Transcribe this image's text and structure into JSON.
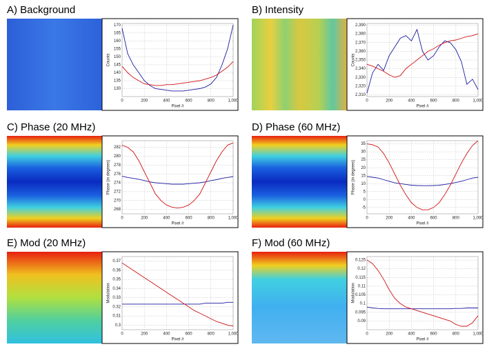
{
  "chart_data": [
    {
      "type": "line",
      "title": "A) Background",
      "xlabel": "Pixel #",
      "ylabel": "Counts",
      "x": [
        0,
        50,
        100,
        150,
        200,
        250,
        300,
        350,
        400,
        450,
        500,
        550,
        600,
        650,
        700,
        750,
        800,
        850,
        900,
        950,
        1000
      ],
      "xlim": [
        0,
        1000
      ],
      "xticks": [
        0,
        200,
        400,
        600,
        800,
        {
          "value": 1000,
          "label": "1,000"
        }
      ],
      "ylim": [
        125,
        171
      ],
      "yticks": [
        130,
        135,
        140,
        145,
        150,
        155,
        160,
        165,
        170
      ],
      "grid": true,
      "series": [
        {
          "color": "#1a1aa0",
          "values": [
            168,
            152,
            145,
            140,
            135,
            132,
            130,
            129.5,
            129,
            128.5,
            128.5,
            128.5,
            129,
            129.5,
            130,
            131,
            133,
            137,
            145,
            155,
            170
          ]
        },
        {
          "color": "#d01010",
          "values": [
            144,
            140,
            137,
            135,
            133,
            132.5,
            132,
            132,
            132.5,
            132.5,
            133,
            133.5,
            134,
            134.5,
            135,
            136,
            137,
            138.5,
            141,
            143.5,
            147
          ]
        }
      ]
    },
    {
      "type": "line",
      "title": "B) Intensity",
      "xlabel": "Pixel #",
      "ylabel": "Counts",
      "x": [
        0,
        50,
        100,
        150,
        200,
        250,
        300,
        350,
        400,
        450,
        500,
        550,
        600,
        650,
        700,
        750,
        800,
        850,
        900,
        950,
        1000
      ],
      "xlim": [
        0,
        1000
      ],
      "xticks": [
        0,
        200,
        400,
        600,
        800,
        {
          "value": 1000,
          "label": "1,000"
        }
      ],
      "ylim": [
        2308,
        2392
      ],
      "yticks": [
        {
          "value": 2310,
          "label": "2,310"
        },
        {
          "value": 2320,
          "label": "2,320"
        },
        {
          "value": 2330,
          "label": "2,330"
        },
        {
          "value": 2340,
          "label": "2,340"
        },
        {
          "value": 2350,
          "label": "2,350"
        },
        {
          "value": 2360,
          "label": "2,360"
        },
        {
          "value": 2370,
          "label": "2,370"
        },
        {
          "value": 2380,
          "label": "2,380"
        },
        {
          "value": 2390,
          "label": "2,390"
        }
      ],
      "grid": true,
      "series": [
        {
          "color": "#1a1aa0",
          "values": [
            2312,
            2335,
            2345,
            2338,
            2355,
            2365,
            2375,
            2378,
            2372,
            2385,
            2360,
            2350,
            2355,
            2365,
            2372,
            2370,
            2362,
            2348,
            2322,
            2328,
            2316
          ]
        },
        {
          "color": "#d01010",
          "values": [
            2345,
            2343,
            2340,
            2337,
            2333,
            2330,
            2332,
            2340,
            2345,
            2350,
            2355,
            2360,
            2363,
            2367,
            2370,
            2372,
            2373,
            2375,
            2377,
            2378,
            2380
          ]
        }
      ]
    },
    {
      "type": "line",
      "title": "C) Phase (20 MHz)",
      "xlabel": "Pixel #",
      "ylabel": "Phase (in degrees)",
      "x": [
        0,
        50,
        100,
        150,
        200,
        250,
        300,
        350,
        400,
        450,
        500,
        550,
        600,
        650,
        700,
        750,
        800,
        850,
        900,
        950,
        1000
      ],
      "xlim": [
        0,
        1000
      ],
      "xticks": [
        0,
        200,
        400,
        600,
        800,
        {
          "value": 1000,
          "label": "1,000"
        }
      ],
      "ylim": [
        267,
        283.5
      ],
      "yticks": [
        268,
        270,
        272,
        274,
        276,
        278,
        280,
        282
      ],
      "grid": true,
      "series": [
        {
          "color": "#1a1aa0",
          "values": [
            275.5,
            275.2,
            275,
            274.8,
            274.5,
            274.2,
            274,
            273.9,
            273.8,
            273.7,
            273.7,
            273.7,
            273.8,
            273.9,
            274,
            274.2,
            274.5,
            274.7,
            275,
            275.2,
            275.4
          ]
        },
        {
          "color": "#d01010",
          "values": [
            282.5,
            282,
            281,
            279,
            276.5,
            274,
            271.5,
            270,
            269,
            268.5,
            268.3,
            268.5,
            269,
            270,
            271.5,
            274,
            276.5,
            279,
            281,
            282.5,
            283
          ]
        }
      ]
    },
    {
      "type": "line",
      "title": "D) Phase (60 MHz)",
      "xlabel": "Pixel #",
      "ylabel": "Phase (in degrees)",
      "x": [
        0,
        50,
        100,
        150,
        200,
        250,
        300,
        350,
        400,
        450,
        500,
        550,
        600,
        650,
        700,
        750,
        800,
        850,
        900,
        950,
        1000
      ],
      "xlim": [
        0,
        1000
      ],
      "xticks": [
        0,
        200,
        400,
        600,
        800,
        {
          "value": 1000,
          "label": "1,000"
        }
      ],
      "ylim": [
        -9,
        37
      ],
      "yticks": [
        -5,
        0,
        5,
        10,
        15,
        20,
        25,
        30,
        35
      ],
      "grid": true,
      "series": [
        {
          "color": "#1a1aa0",
          "values": [
            14.5,
            14,
            13.5,
            12.5,
            11.5,
            10.5,
            10,
            9.5,
            9,
            8.8,
            8.7,
            8.7,
            8.8,
            9,
            9.5,
            10,
            10.7,
            11.5,
            12.5,
            13.5,
            14
          ]
        },
        {
          "color": "#d01010",
          "values": [
            35,
            34.5,
            33,
            29,
            23,
            16,
            9,
            3,
            -2,
            -5,
            -6.5,
            -6.5,
            -5,
            -2,
            3,
            9,
            16,
            23,
            29,
            34,
            37
          ]
        }
      ]
    },
    {
      "type": "line",
      "title": "E) Mod (20 MHz)",
      "xlabel": "Pixel #",
      "ylabel": "Modulation",
      "x": [
        0,
        50,
        100,
        150,
        200,
        250,
        300,
        350,
        400,
        450,
        500,
        550,
        600,
        650,
        700,
        750,
        800,
        850,
        900,
        950,
        1000
      ],
      "xlim": [
        0,
        1000
      ],
      "xticks": [
        0,
        200,
        400,
        600,
        800,
        {
          "value": 1000,
          "label": "1,000"
        }
      ],
      "ylim": [
        0.295,
        0.375
      ],
      "yticks": [
        0.3,
        0.31,
        0.32,
        0.33,
        0.34,
        0.35,
        0.36,
        0.37
      ],
      "grid": true,
      "series": [
        {
          "color": "#1a1aa0",
          "values": [
            0.323,
            0.323,
            0.323,
            0.323,
            0.323,
            0.323,
            0.323,
            0.323,
            0.323,
            0.323,
            0.323,
            0.323,
            0.323,
            0.323,
            0.323,
            0.324,
            0.324,
            0.324,
            0.324,
            0.325,
            0.325
          ]
        },
        {
          "color": "#d01010",
          "values": [
            0.368,
            0.364,
            0.36,
            0.356,
            0.352,
            0.348,
            0.344,
            0.34,
            0.336,
            0.332,
            0.328,
            0.324,
            0.32,
            0.316,
            0.313,
            0.31,
            0.307,
            0.304,
            0.302,
            0.3,
            0.299
          ]
        }
      ]
    },
    {
      "type": "line",
      "title": "F) Mod (60 MHz)",
      "xlabel": "Pixel #",
      "ylabel": "Modulation",
      "x": [
        0,
        50,
        100,
        150,
        200,
        250,
        300,
        350,
        400,
        450,
        500,
        550,
        600,
        650,
        700,
        750,
        800,
        850,
        900,
        950,
        1000
      ],
      "xlim": [
        0,
        1000
      ],
      "xticks": [
        0,
        200,
        400,
        600,
        800,
        {
          "value": 1000,
          "label": "1,000"
        }
      ],
      "ylim": [
        0.085,
        0.127
      ],
      "yticks": [
        0.09,
        0.095,
        0.1,
        0.105,
        0.11,
        0.115,
        0.12,
        0.125
      ],
      "grid": true,
      "series": [
        {
          "color": "#1a1aa0",
          "values": [
            0.098,
            0.0975,
            0.0972,
            0.097,
            0.097,
            0.097,
            0.097,
            0.097,
            0.097,
            0.097,
            0.097,
            0.097,
            0.097,
            0.097,
            0.097,
            0.097,
            0.0972,
            0.0972,
            0.0975,
            0.0975,
            0.0975
          ]
        },
        {
          "color": "#d01010",
          "values": [
            0.125,
            0.123,
            0.119,
            0.114,
            0.108,
            0.103,
            0.1,
            0.098,
            0.097,
            0.096,
            0.095,
            0.094,
            0.093,
            0.092,
            0.091,
            0.09,
            0.088,
            0.087,
            0.087,
            0.089,
            0.093
          ]
        }
      ]
    }
  ]
}
